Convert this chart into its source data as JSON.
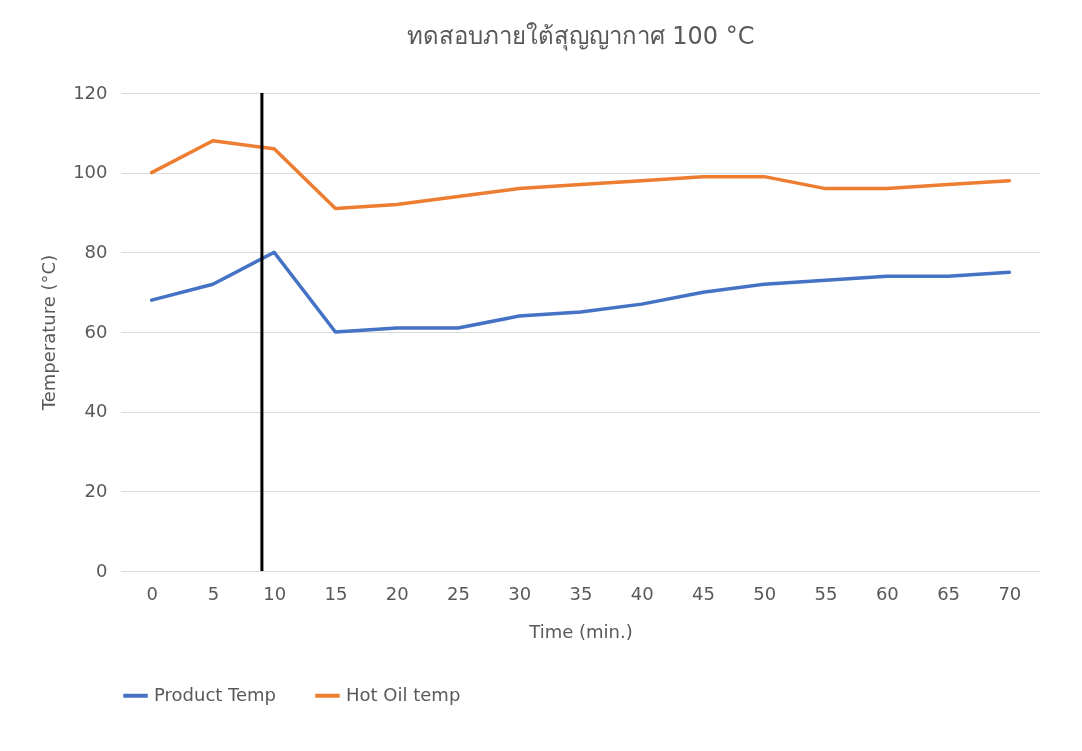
{
  "chart_data": {
    "type": "line",
    "title": "ทดสอบภายใต้สุญญากาศ 100 °C",
    "xlabel": "Time (min.)",
    "ylabel": "Temperature (°C)",
    "x": [
      0,
      5,
      10,
      15,
      20,
      25,
      30,
      35,
      40,
      45,
      50,
      55,
      60,
      65,
      70
    ],
    "series": [
      {
        "name": "Product Temp",
        "color": "#4472c4",
        "values": [
          68,
          72,
          80,
          60,
          61,
          61,
          64,
          65,
          67,
          70,
          72,
          73,
          74,
          74,
          75
        ]
      },
      {
        "name": "Hot Oil temp",
        "color": "#ed7d31",
        "values": [
          100,
          108,
          106,
          91,
          92,
          94,
          96,
          97,
          98,
          99,
          99,
          96,
          96,
          97,
          98
        ]
      }
    ],
    "xlim": [
      -2.5,
      72.5
    ],
    "xticks": [
      0,
      5,
      10,
      15,
      20,
      25,
      30,
      35,
      40,
      45,
      50,
      55,
      60,
      65,
      70
    ],
    "ylim": [
      0,
      120
    ],
    "yticks": [
      0,
      20,
      40,
      60,
      80,
      100,
      120
    ],
    "ref_lines": [
      {
        "axis": "x",
        "value": 9,
        "label": null,
        "color": "#000000"
      }
    ],
    "grid": "y",
    "legend": "bottom",
    "marker": "none",
    "line_style": "solid"
  }
}
